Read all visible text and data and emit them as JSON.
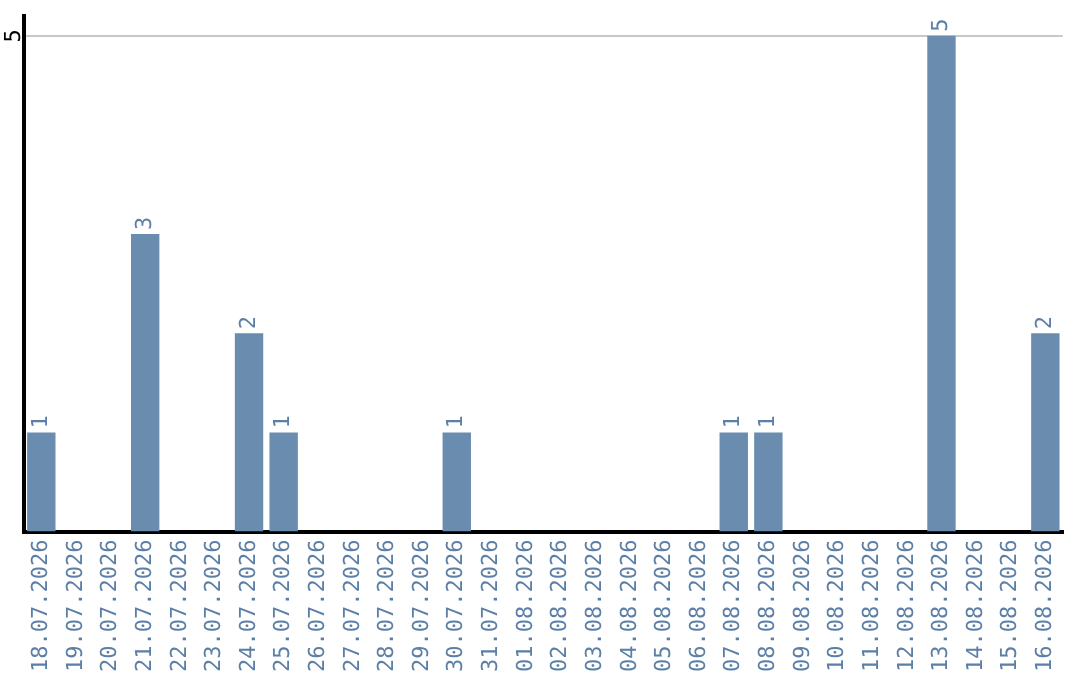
{
  "chart_data": {
    "type": "bar",
    "categories": [
      "18.07.2026",
      "19.07.2026",
      "20.07.2026",
      "21.07.2026",
      "22.07.2026",
      "23.07.2026",
      "24.07.2026",
      "25.07.2026",
      "26.07.2026",
      "27.07.2026",
      "28.07.2026",
      "29.07.2026",
      "30.07.2026",
      "31.07.2026",
      "01.08.2026",
      "02.08.2026",
      "03.08.2026",
      "04.08.2026",
      "05.08.2026",
      "06.08.2026",
      "07.08.2026",
      "08.08.2026",
      "09.08.2026",
      "10.08.2026",
      "11.08.2026",
      "12.08.2026",
      "13.08.2026",
      "14.08.2026",
      "15.08.2026",
      "16.08.2026"
    ],
    "values": [
      1,
      0,
      0,
      3,
      0,
      0,
      2,
      1,
      0,
      0,
      0,
      0,
      1,
      0,
      0,
      0,
      0,
      0,
      0,
      0,
      1,
      1,
      0,
      0,
      0,
      0,
      5,
      0,
      0,
      2
    ],
    "value_labels": [
      "1",
      null,
      null,
      "3",
      null,
      null,
      "2",
      "1",
      null,
      null,
      null,
      null,
      "1",
      null,
      null,
      null,
      null,
      null,
      null,
      null,
      "1",
      "1",
      null,
      null,
      null,
      null,
      "5",
      null,
      null,
      "2"
    ],
    "color": "#6a8caf",
    "ylim": [
      0,
      5.2
    ],
    "yticks": [
      5
    ],
    "grid": "y"
  }
}
